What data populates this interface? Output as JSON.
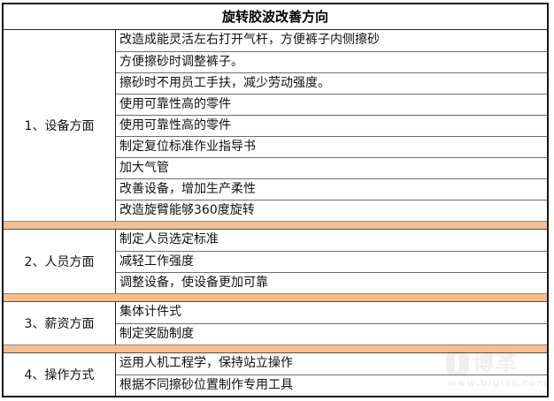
{
  "title": "旋转胶波改善方向",
  "groups": [
    {
      "label": "1、设备方面",
      "items": [
        "改造成能灵活左右打开气杆，方便裤子内侧擦砂",
        "方便擦砂时调整裤子。",
        "擦砂时不用员工手扶，减少劳动强度。",
        "使用可靠性高的零件",
        "使用可靠性高的零件",
        "制定复位标准作业指导书",
        "加大气管",
        "改善设备，增加生产柔性",
        "改造旋臂能够360度旋转"
      ]
    },
    {
      "label": "2、人员方面",
      "items": [
        "制定人员选定标准",
        "减轻工作强度",
        "调整设备，使设备更加可靠"
      ]
    },
    {
      "label": "3、薪资方面",
      "items": [
        "集体计件式",
        "制定奖励制度"
      ]
    },
    {
      "label": "4、操作方式",
      "items": [
        "运用人机工程学，保持站立操作",
        "根据不同擦砂位置制作专用工具"
      ]
    }
  ],
  "watermark": {
    "brand": "博革",
    "url": "www.bigiss.com"
  },
  "colors": {
    "separator_band": "#f6be8d",
    "outer_border": "#151515",
    "row_line": "#6e6e6e"
  }
}
